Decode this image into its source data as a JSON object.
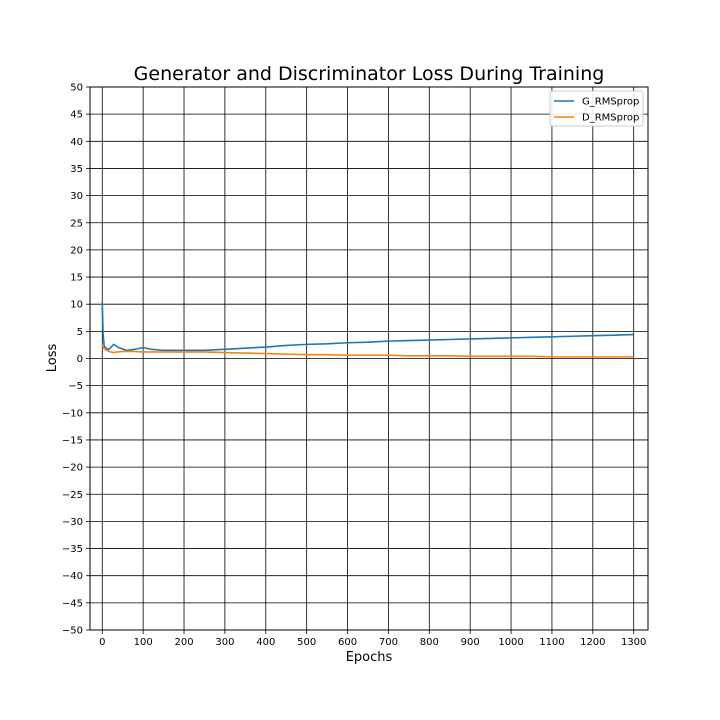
{
  "chart_data": {
    "type": "line",
    "title": "Generator and Discriminator Loss During Training",
    "xlabel": "Epochs",
    "ylabel": "Loss",
    "xlim": [
      -30,
      1335
    ],
    "ylim": [
      -50,
      50
    ],
    "xticks": [
      0,
      100,
      200,
      300,
      400,
      500,
      600,
      700,
      800,
      900,
      1000,
      1100,
      1200,
      1300
    ],
    "yticks": [
      50,
      45,
      40,
      35,
      30,
      25,
      20,
      15,
      10,
      5,
      0,
      -5,
      -10,
      -15,
      -20,
      -25,
      -30,
      -35,
      -40,
      -45,
      -50
    ],
    "ytick_labels": [
      "50",
      "45",
      "40",
      "35",
      "30",
      "25",
      "20",
      "15",
      "10",
      "5",
      "0",
      "−5",
      "−10",
      "−15",
      "−20",
      "−25",
      "−30",
      "−35",
      "−40",
      "−45",
      "−50"
    ],
    "grid": true,
    "legend_position": "top-right",
    "series": [
      {
        "name": "G_RMSprop",
        "color": "#1f77b4",
        "points": [
          [
            0,
            10.5
          ],
          [
            2,
            4.5
          ],
          [
            5,
            2.2
          ],
          [
            15,
            1.6
          ],
          [
            28,
            2.6
          ],
          [
            40,
            2.0
          ],
          [
            60,
            1.5
          ],
          [
            80,
            1.7
          ],
          [
            100,
            2.0
          ],
          [
            120,
            1.7
          ],
          [
            150,
            1.5
          ],
          [
            200,
            1.5
          ],
          [
            250,
            1.5
          ],
          [
            300,
            1.7
          ],
          [
            350,
            1.9
          ],
          [
            400,
            2.1
          ],
          [
            450,
            2.4
          ],
          [
            500,
            2.6
          ],
          [
            550,
            2.7
          ],
          [
            600,
            2.9
          ],
          [
            650,
            3.0
          ],
          [
            700,
            3.2
          ],
          [
            750,
            3.3
          ],
          [
            800,
            3.4
          ],
          [
            850,
            3.5
          ],
          [
            900,
            3.6
          ],
          [
            950,
            3.7
          ],
          [
            1000,
            3.8
          ],
          [
            1050,
            3.9
          ],
          [
            1100,
            4.0
          ],
          [
            1150,
            4.1
          ],
          [
            1200,
            4.2
          ],
          [
            1250,
            4.3
          ],
          [
            1300,
            4.4
          ]
        ]
      },
      {
        "name": "D_RMSprop",
        "color": "#ff7f0e",
        "points": [
          [
            0,
            2.6
          ],
          [
            2,
            2.0
          ],
          [
            10,
            1.5
          ],
          [
            25,
            1.1
          ],
          [
            50,
            1.3
          ],
          [
            75,
            1.3
          ],
          [
            100,
            1.2
          ],
          [
            150,
            1.2
          ],
          [
            200,
            1.2
          ],
          [
            250,
            1.2
          ],
          [
            300,
            1.1
          ],
          [
            350,
            1.0
          ],
          [
            400,
            0.9
          ],
          [
            450,
            0.8
          ],
          [
            500,
            0.7
          ],
          [
            550,
            0.7
          ],
          [
            600,
            0.6
          ],
          [
            650,
            0.6
          ],
          [
            700,
            0.6
          ],
          [
            750,
            0.5
          ],
          [
            800,
            0.5
          ],
          [
            850,
            0.5
          ],
          [
            900,
            0.4
          ],
          [
            950,
            0.4
          ],
          [
            1000,
            0.4
          ],
          [
            1050,
            0.4
          ],
          [
            1100,
            0.3
          ],
          [
            1150,
            0.3
          ],
          [
            1200,
            0.3
          ],
          [
            1250,
            0.3
          ],
          [
            1300,
            0.3
          ]
        ]
      }
    ]
  }
}
